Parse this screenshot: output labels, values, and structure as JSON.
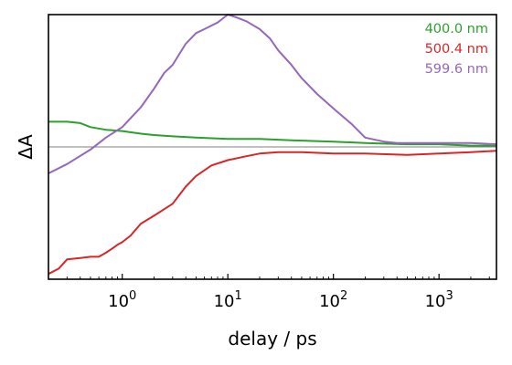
{
  "chart_data": {
    "type": "line",
    "xlabel": "delay / ps",
    "ylabel": "ΔA",
    "x_scale": "log",
    "xlim": [
      0.2,
      3500
    ],
    "ylim": [
      -1.0,
      1.0
    ],
    "x_ticks": [
      {
        "value": 1,
        "base": "10",
        "exp": "0"
      },
      {
        "value": 10,
        "base": "10",
        "exp": "1"
      },
      {
        "value": 100,
        "base": "10",
        "exp": "2"
      },
      {
        "value": 1000,
        "base": "10",
        "exp": "3"
      }
    ],
    "y_ticks_labeled": false,
    "zero_line": true,
    "grid": false,
    "legend_position": "top-right",
    "series": [
      {
        "name": "400.0 nm",
        "color": "#2ca02c",
        "points": [
          [
            0.2,
            0.19
          ],
          [
            0.3,
            0.19
          ],
          [
            0.4,
            0.18
          ],
          [
            0.5,
            0.15
          ],
          [
            0.7,
            0.13
          ],
          [
            1,
            0.12
          ],
          [
            1.5,
            0.1
          ],
          [
            2,
            0.09
          ],
          [
            3,
            0.08
          ],
          [
            5,
            0.07
          ],
          [
            10,
            0.06
          ],
          [
            20,
            0.06
          ],
          [
            40,
            0.05
          ],
          [
            100,
            0.04
          ],
          [
            200,
            0.03
          ],
          [
            500,
            0.02
          ],
          [
            1000,
            0.02
          ],
          [
            2000,
            0.01
          ],
          [
            3500,
            0.01
          ]
        ]
      },
      {
        "name": "500.4 nm",
        "color": "#d62728",
        "points": [
          [
            0.2,
            -0.96
          ],
          [
            0.25,
            -0.92
          ],
          [
            0.3,
            -0.85
          ],
          [
            0.4,
            -0.84
          ],
          [
            0.5,
            -0.83
          ],
          [
            0.6,
            -0.83
          ],
          [
            0.7,
            -0.8
          ],
          [
            0.8,
            -0.77
          ],
          [
            0.9,
            -0.74
          ],
          [
            1,
            -0.72
          ],
          [
            1.2,
            -0.67
          ],
          [
            1.5,
            -0.58
          ],
          [
            2,
            -0.52
          ],
          [
            2.5,
            -0.47
          ],
          [
            3,
            -0.43
          ],
          [
            4,
            -0.3
          ],
          [
            5,
            -0.22
          ],
          [
            7,
            -0.14
          ],
          [
            10,
            -0.1
          ],
          [
            15,
            -0.07
          ],
          [
            20,
            -0.05
          ],
          [
            30,
            -0.04
          ],
          [
            50,
            -0.04
          ],
          [
            100,
            -0.05
          ],
          [
            200,
            -0.05
          ],
          [
            500,
            -0.06
          ],
          [
            1000,
            -0.05
          ],
          [
            2000,
            -0.04
          ],
          [
            3500,
            -0.03
          ]
        ]
      },
      {
        "name": "599.6 nm",
        "color": "#9467bd",
        "points": [
          [
            0.2,
            -0.2
          ],
          [
            0.3,
            -0.13
          ],
          [
            0.5,
            -0.02
          ],
          [
            0.7,
            0.07
          ],
          [
            1,
            0.15
          ],
          [
            1.5,
            0.3
          ],
          [
            2,
            0.44
          ],
          [
            2.5,
            0.56
          ],
          [
            3,
            0.62
          ],
          [
            4,
            0.78
          ],
          [
            5,
            0.86
          ],
          [
            6,
            0.89
          ],
          [
            8,
            0.94
          ],
          [
            10,
            1.0
          ],
          [
            12,
            0.98
          ],
          [
            15,
            0.95
          ],
          [
            20,
            0.89
          ],
          [
            25,
            0.82
          ],
          [
            30,
            0.73
          ],
          [
            40,
            0.62
          ],
          [
            50,
            0.52
          ],
          [
            70,
            0.4
          ],
          [
            100,
            0.29
          ],
          [
            150,
            0.17
          ],
          [
            200,
            0.07
          ],
          [
            300,
            0.04
          ],
          [
            400,
            0.03
          ],
          [
            500,
            0.03
          ],
          [
            1000,
            0.03
          ],
          [
            2000,
            0.03
          ],
          [
            3500,
            0.02
          ]
        ]
      }
    ]
  }
}
